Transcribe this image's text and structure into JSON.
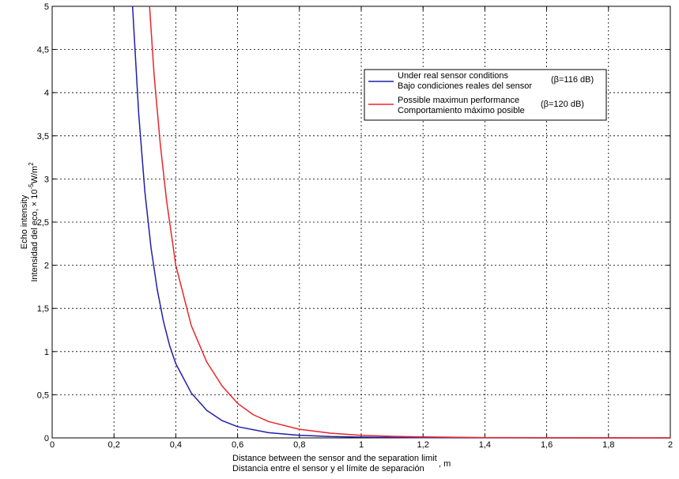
{
  "chart_data": {
    "type": "line",
    "title": "",
    "xlabel_line1": "Distance between the sensor and the separation limit",
    "xlabel_line2": "Distancia entre el sensor y el límite de separación",
    "xlabel_unit": ", m",
    "ylabel_line1": "Echo intensity",
    "ylabel_line2": "Intensidad del eco, × 10",
    "ylabel_exp": "-5",
    "ylabel_unit": "W/m",
    "ylabel_unit_exp": "2",
    "xlim": [
      0,
      2
    ],
    "ylim": [
      0,
      5
    ],
    "xticks": [
      "0",
      "0,2",
      "0,4",
      "0,6",
      "0,8",
      "1",
      "1,2",
      "1,4",
      "1,6",
      "1,8",
      "2"
    ],
    "yticks": [
      "0",
      "0,5",
      "1",
      "1,5",
      "2",
      "2,5",
      "3",
      "3,5",
      "4",
      "4,5",
      "5"
    ],
    "grid": true,
    "legend_position": "top-right",
    "series": [
      {
        "name_line1": "Under real sensor conditions",
        "name_line2": "Bajo condiciones reales del sensor",
        "annotation": "(β=116 dB)",
        "color": "#1f1fa8",
        "x": [
          0.26,
          0.28,
          0.3,
          0.32,
          0.34,
          0.36,
          0.38,
          0.4,
          0.45,
          0.5,
          0.55,
          0.6,
          0.7,
          0.8,
          0.9,
          1.0,
          1.2,
          1.4,
          1.6,
          1.8,
          2.0
        ],
        "y": [
          5.0,
          3.75,
          2.85,
          2.2,
          1.72,
          1.35,
          1.07,
          0.86,
          0.52,
          0.32,
          0.2,
          0.13,
          0.06,
          0.03,
          0.016,
          0.009,
          0.003,
          0.001,
          0.0004,
          0.0002,
          0.0001
        ]
      },
      {
        "name_line1": "Possible maximun performance",
        "name_line2": "Comportamiento máximo posible",
        "annotation": "(β=120 dB)",
        "color": "#e8262a",
        "x": [
          0.315,
          0.33,
          0.35,
          0.37,
          0.4,
          0.45,
          0.5,
          0.55,
          0.6,
          0.65,
          0.7,
          0.8,
          0.9,
          1.0,
          1.1,
          1.2,
          1.4,
          1.6,
          1.8,
          2.0
        ],
        "y": [
          5.0,
          4.2,
          3.4,
          2.75,
          2.0,
          1.3,
          0.88,
          0.6,
          0.4,
          0.27,
          0.19,
          0.1,
          0.055,
          0.03,
          0.018,
          0.011,
          0.004,
          0.0015,
          0.0006,
          0.0002
        ]
      }
    ]
  }
}
